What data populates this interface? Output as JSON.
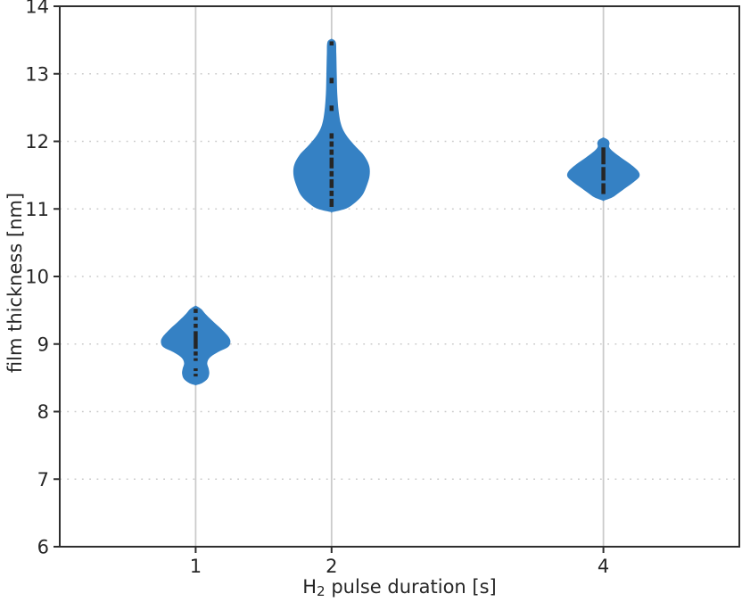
{
  "figure": {
    "title": "",
    "background_color": "#ffffff"
  },
  "chart_data": {
    "type": "violin",
    "title": "",
    "xlabel": "H2 pulse duration [s]",
    "xlabel_parts": {
      "prefix": "H",
      "sub": "2",
      "rest": " pulse duration [s]"
    },
    "ylabel": "film thickness [nm]",
    "xlim": [
      0,
      5
    ],
    "ylim": [
      6,
      14
    ],
    "x_ticks": [
      1,
      2,
      4
    ],
    "x_tick_labels": [
      "1",
      "2",
      "4"
    ],
    "y_ticks": [
      6,
      7,
      8,
      9,
      10,
      11,
      12,
      13,
      14
    ],
    "y_tick_labels": [
      "6",
      "7",
      "8",
      "9",
      "10",
      "11",
      "12",
      "13",
      "14"
    ],
    "grid": {
      "x_style": "solid",
      "y_style": "dotted",
      "visible": true
    },
    "legend": "none",
    "style": {
      "violin_color": "#3581c4",
      "inner_color": "#262626",
      "spine_color": "#2e2e2e",
      "text_color": "#262626",
      "grid_color": "#cbcbcb"
    },
    "violins": [
      {
        "position": 1,
        "value_range": [
          8.39,
          9.57
        ],
        "mode": 9.0,
        "profile": [
          [
            9.57,
            0.0
          ],
          [
            9.52,
            0.04
          ],
          [
            9.45,
            0.07
          ],
          [
            9.35,
            0.12
          ],
          [
            9.22,
            0.19
          ],
          [
            9.1,
            0.245
          ],
          [
            9.02,
            0.255
          ],
          [
            8.95,
            0.235
          ],
          [
            8.88,
            0.165
          ],
          [
            8.8,
            0.105
          ],
          [
            8.72,
            0.085
          ],
          [
            8.64,
            0.095
          ],
          [
            8.56,
            0.1
          ],
          [
            8.48,
            0.085
          ],
          [
            8.42,
            0.045
          ],
          [
            8.39,
            0.0
          ]
        ],
        "inner_segments": [
          [
            9.52,
            9.46
          ],
          [
            9.4,
            9.35
          ],
          [
            9.3,
            9.24
          ],
          [
            9.19,
            8.93
          ],
          [
            8.89,
            8.83
          ],
          [
            8.79,
            8.75
          ],
          [
            8.64,
            8.6
          ],
          [
            8.56,
            8.52
          ]
        ]
      },
      {
        "position": 2,
        "value_range": [
          10.95,
          13.52
        ],
        "mode": 11.5,
        "profile": [
          [
            13.52,
            0.0
          ],
          [
            13.47,
            0.03
          ],
          [
            13.3,
            0.035
          ],
          [
            13.0,
            0.038
          ],
          [
            12.7,
            0.042
          ],
          [
            12.45,
            0.052
          ],
          [
            12.25,
            0.07
          ],
          [
            12.1,
            0.105
          ],
          [
            11.95,
            0.165
          ],
          [
            11.8,
            0.235
          ],
          [
            11.65,
            0.275
          ],
          [
            11.5,
            0.28
          ],
          [
            11.35,
            0.26
          ],
          [
            11.2,
            0.225
          ],
          [
            11.08,
            0.165
          ],
          [
            11.0,
            0.1
          ],
          [
            10.95,
            0.0
          ]
        ],
        "inner_segments": [
          [
            13.48,
            13.42
          ],
          [
            12.94,
            12.86
          ],
          [
            12.53,
            12.45
          ],
          [
            12.12,
            12.04
          ],
          [
            12.0,
            11.92
          ],
          [
            11.88,
            11.8
          ],
          [
            11.76,
            11.6
          ],
          [
            11.56,
            11.48
          ],
          [
            11.44,
            11.31
          ],
          [
            11.27,
            11.19
          ],
          [
            11.15,
            11.03
          ]
        ]
      },
      {
        "position": 4,
        "value_range": [
          11.12,
          12.06
        ],
        "mode": 11.5,
        "profile": [
          [
            12.06,
            0.0
          ],
          [
            12.02,
            0.035
          ],
          [
            11.97,
            0.045
          ],
          [
            11.92,
            0.042
          ],
          [
            11.86,
            0.065
          ],
          [
            11.76,
            0.13
          ],
          [
            11.66,
            0.2
          ],
          [
            11.56,
            0.255
          ],
          [
            11.48,
            0.265
          ],
          [
            11.4,
            0.225
          ],
          [
            11.32,
            0.17
          ],
          [
            11.24,
            0.115
          ],
          [
            11.17,
            0.065
          ],
          [
            11.12,
            0.0
          ]
        ],
        "inner_segments": [
          [
            11.91,
            11.66
          ],
          [
            11.62,
            11.42
          ],
          [
            11.38,
            11.22
          ]
        ]
      }
    ]
  }
}
